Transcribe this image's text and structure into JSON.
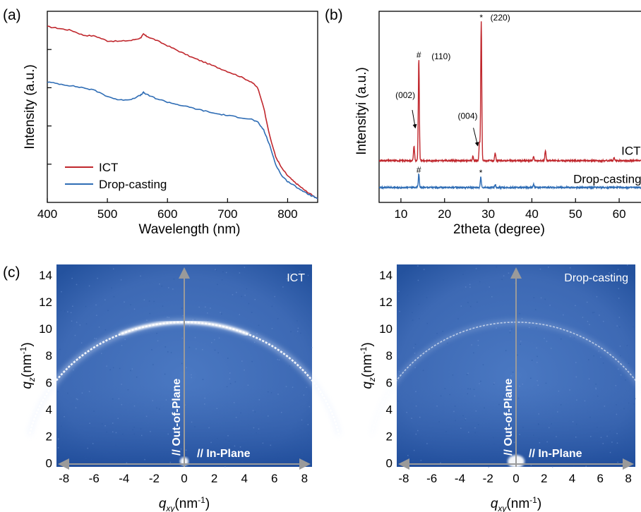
{
  "panels": {
    "a": "(a)",
    "b": "(b)",
    "c": "(c)"
  },
  "colors": {
    "ict": "#c0272d",
    "drop": "#2f6db5",
    "map_bg": "#3f6bb5",
    "map_edge": "#1f4c9a",
    "ring": "#e8f0ff",
    "axis_arrow": "#9a9a9a"
  },
  "chart_data": [
    {
      "type": "line",
      "panel": "a",
      "xlabel": "Wavelength (nm)",
      "ylabel": "Intensity (a.u.)",
      "xlim": [
        400,
        850
      ],
      "ylim": [
        0,
        1
      ],
      "xticks": [
        400,
        500,
        600,
        700,
        800
      ],
      "yticks_labeled": false,
      "legend": "bottom-left",
      "series": [
        {
          "name": "ICT",
          "color": "#c0272d",
          "x": [
            400,
            420,
            440,
            460,
            480,
            500,
            520,
            540,
            555,
            560,
            565,
            580,
            600,
            620,
            640,
            660,
            680,
            700,
            720,
            740,
            750,
            760,
            770,
            780,
            790,
            800,
            810,
            820,
            830,
            840,
            850
          ],
          "y": [
            0.92,
            0.91,
            0.9,
            0.875,
            0.87,
            0.845,
            0.843,
            0.848,
            0.86,
            0.88,
            0.87,
            0.85,
            0.82,
            0.79,
            0.76,
            0.735,
            0.71,
            0.685,
            0.66,
            0.63,
            0.6,
            0.5,
            0.35,
            0.24,
            0.18,
            0.14,
            0.11,
            0.085,
            0.06,
            0.04,
            0.02
          ]
        },
        {
          "name": "Drop-casting",
          "color": "#2f6db5",
          "x": [
            400,
            420,
            440,
            460,
            480,
            500,
            520,
            540,
            555,
            560,
            565,
            580,
            600,
            620,
            640,
            660,
            680,
            700,
            720,
            740,
            750,
            760,
            770,
            780,
            790,
            800,
            810,
            820,
            830,
            840,
            850
          ],
          "y": [
            0.63,
            0.62,
            0.61,
            0.6,
            0.585,
            0.555,
            0.535,
            0.54,
            0.56,
            0.575,
            0.565,
            0.545,
            0.525,
            0.51,
            0.495,
            0.48,
            0.465,
            0.455,
            0.445,
            0.435,
            0.42,
            0.38,
            0.3,
            0.2,
            0.14,
            0.11,
            0.09,
            0.07,
            0.05,
            0.035,
            0.02
          ]
        }
      ]
    },
    {
      "type": "line",
      "panel": "b",
      "xlabel": "2theta (degree)",
      "ylabel": "Intensityi (a.u.)",
      "xlim": [
        5,
        65
      ],
      "ylim": [
        0,
        1
      ],
      "xticks": [
        10,
        20,
        30,
        40,
        50,
        60
      ],
      "yticks_labeled": false,
      "series": [
        {
          "name": "ICT",
          "color": "#c0272d",
          "baseline": 0.28,
          "peaks": [
            {
              "x": 13.0,
              "h": 0.1
            },
            {
              "x": 14.1,
              "h": 0.68
            },
            {
              "x": 26.5,
              "h": 0.03
            },
            {
              "x": 28.0,
              "h": 0.12
            },
            {
              "x": 28.4,
              "h": 0.93
            },
            {
              "x": 31.6,
              "h": 0.05
            },
            {
              "x": 40.4,
              "h": 0.03
            },
            {
              "x": 43.1,
              "h": 0.07
            },
            {
              "x": 58.8,
              "h": 0.02
            }
          ]
        },
        {
          "name": "Drop-casting",
          "color": "#2f6db5",
          "baseline": 0.1,
          "peaks": [
            {
              "x": 14.1,
              "h": 0.09
            },
            {
              "x": 28.3,
              "h": 0.07
            },
            {
              "x": 31.6,
              "h": 0.02
            },
            {
              "x": 40.4,
              "h": 0.02
            }
          ]
        }
      ],
      "annotations": [
        {
          "text": "#",
          "x": 14.1,
          "series": 0
        },
        {
          "text": "(110)",
          "x": 17.0,
          "y": 0.96,
          "align": "start"
        },
        {
          "text": "*",
          "x": 28.4,
          "series": 0
        },
        {
          "text": "(220)",
          "x": 30.5,
          "y": 1.22,
          "align": "start"
        },
        {
          "text": "(002)",
          "x": 11.0,
          "y": 0.7,
          "align": "middle"
        },
        {
          "text": "(004)",
          "x": 25.3,
          "y": 0.56,
          "align": "middle"
        },
        {
          "text": "#",
          "x": 14.1,
          "series": 1
        },
        {
          "text": "*",
          "x": 28.3,
          "series": 1
        }
      ],
      "arrows": [
        {
          "from": [
            12.6,
            0.62
          ],
          "to": [
            13.3,
            0.5
          ]
        },
        {
          "from": [
            26.6,
            0.5
          ],
          "to": [
            27.6,
            0.38
          ]
        }
      ],
      "series_labels": [
        {
          "text": "ICT",
          "x": 60.5,
          "y": 0.32
        },
        {
          "text": "Drop-casting",
          "x": 49.5,
          "y": 0.13
        }
      ]
    },
    {
      "type": "heatmap",
      "panel": "c-left",
      "xlabel": "q_xy (nm^-1)",
      "ylabel": "q_z (nm^-1)",
      "xlim": [
        -8.5,
        8.5
      ],
      "ylim": [
        -0.3,
        14.8
      ],
      "xticks": [
        -8,
        -6,
        -4,
        -2,
        0,
        2,
        4,
        6,
        8
      ],
      "yticks": [
        0,
        2,
        4,
        6,
        8,
        10,
        12,
        14
      ],
      "ring_radius": 10.5,
      "ring_strength": "strong",
      "caption": "ICT",
      "axis_labels": [
        "// Out-of-Plane",
        "// In-Plane"
      ]
    },
    {
      "type": "heatmap",
      "panel": "c-right",
      "xlabel": "q_xy (nm^-1)",
      "ylabel": "q_z (nm^-1)",
      "xlim": [
        -8.5,
        8.5
      ],
      "ylim": [
        -0.3,
        14.8
      ],
      "xticks": [
        -8,
        -6,
        -4,
        -2,
        0,
        2,
        4,
        6,
        8
      ],
      "yticks": [
        0,
        2,
        4,
        6,
        8,
        10,
        12,
        14
      ],
      "ring_radius": 10.5,
      "ring_strength": "weak",
      "caption": "Drop-casting",
      "axis_labels": [
        "// Out-of-Plane",
        "// In-Plane"
      ]
    }
  ]
}
